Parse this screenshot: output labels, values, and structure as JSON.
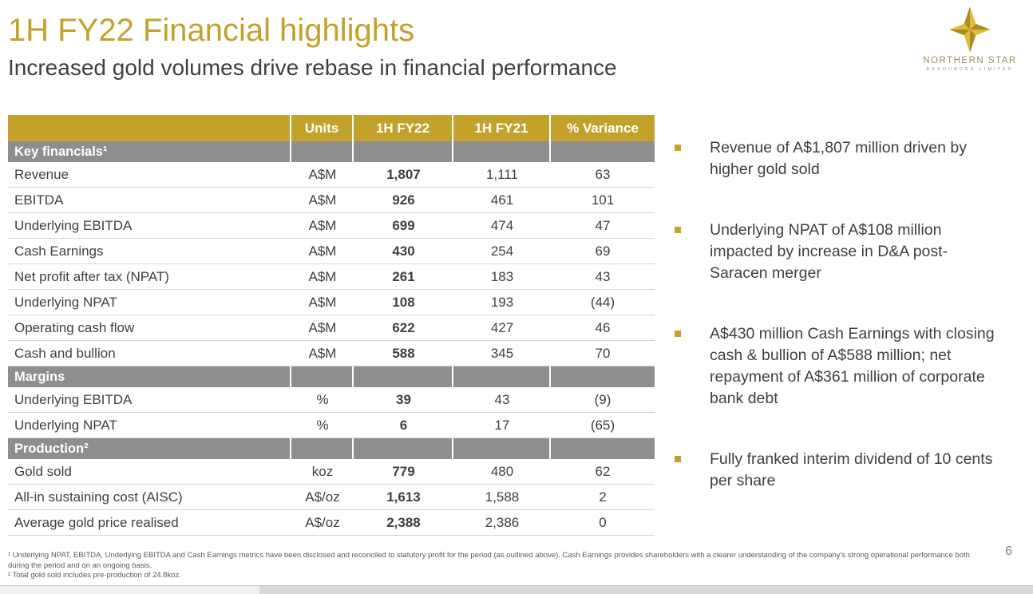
{
  "slide": {
    "title": "1H FY22 Financial highlights",
    "subtitle": "Increased gold volumes drive rebase in financial performance",
    "page_number": "6"
  },
  "logo": {
    "name": "NORTHERN STAR",
    "sub": "RESOURCES LIMITED"
  },
  "colors": {
    "gold": "#C3A22C",
    "section_gray": "#8E8E8E",
    "text_dark": "#404040"
  },
  "table": {
    "headers": [
      "",
      "Units",
      "1H FY22",
      "1H FY21",
      "% Variance"
    ],
    "sections": [
      {
        "label": "Key financials¹",
        "rows": [
          {
            "label": "Revenue",
            "units": "A$M",
            "fy22": "1,807",
            "fy21": "1,111",
            "variance": "63"
          },
          {
            "label": "EBITDA",
            "units": "A$M",
            "fy22": "926",
            "fy21": "461",
            "variance": "101"
          },
          {
            "label": "Underlying EBITDA",
            "units": "A$M",
            "fy22": "699",
            "fy21": "474",
            "variance": "47"
          },
          {
            "label": "Cash Earnings",
            "units": "A$M",
            "fy22": "430",
            "fy21": "254",
            "variance": "69"
          },
          {
            "label": "Net profit after tax (NPAT)",
            "units": "A$M",
            "fy22": "261",
            "fy21": "183",
            "variance": "43"
          },
          {
            "label": "Underlying NPAT",
            "units": "A$M",
            "fy22": "108",
            "fy21": "193",
            "variance": "(44)"
          },
          {
            "label": "Operating cash flow",
            "units": "A$M",
            "fy22": "622",
            "fy21": "427",
            "variance": "46"
          },
          {
            "label": "Cash and bullion",
            "units": "A$M",
            "fy22": "588",
            "fy21": "345",
            "variance": "70"
          }
        ]
      },
      {
        "label": "Margins",
        "rows": [
          {
            "label": "Underlying EBITDA",
            "units": "%",
            "fy22": "39",
            "fy21": "43",
            "variance": "(9)"
          },
          {
            "label": "Underlying NPAT",
            "units": "%",
            "fy22": "6",
            "fy21": "17",
            "variance": "(65)"
          }
        ]
      },
      {
        "label": "Production²",
        "rows": [
          {
            "label": "Gold sold",
            "units": "koz",
            "fy22": "779",
            "fy21": "480",
            "variance": "62"
          },
          {
            "label": "All-in sustaining cost (AISC)",
            "units": "A$/oz",
            "fy22": "1,613",
            "fy21": "1,588",
            "variance": "2"
          },
          {
            "label": "Average gold price realised",
            "units": "A$/oz",
            "fy22": "2,388",
            "fy21": "2,386",
            "variance": "0"
          }
        ]
      }
    ]
  },
  "bullets": [
    "Revenue of A$1,807 million driven by higher gold sold",
    "Underlying NPAT of A$108 million impacted by increase in D&A post-Saracen merger",
    "A$430 million Cash Earnings with closing cash & bullion of A$588 million; net repayment of A$361 million of corporate bank debt",
    "Fully franked interim dividend of 10 cents per share"
  ],
  "footnotes": [
    "¹ Underlying NPAT, EBITDA, Underlying EBITDA and Cash Earnings metrics have been disclosed and reconciled to statutory profit for the period (as outlined above). Cash Earnings provides shareholders with a clearer understanding of the company's strong operational performance both during the period and on an ongoing basis.",
    "² Total gold sold includes pre-production of 24.8koz."
  ]
}
